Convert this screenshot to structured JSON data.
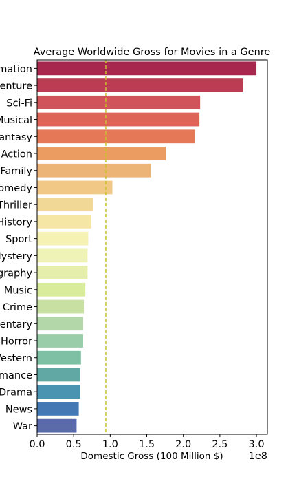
{
  "chart_data": {
    "type": "bar",
    "orientation": "horizontal",
    "title": "Average Worldwide Gross for Movies in a Genre",
    "xlabel": "Domestic Gross (100 Million $)",
    "ylabel": "",
    "x_offset_label": "1e8",
    "xlim": [
      0,
      3.15
    ],
    "xticks": [
      "0.0",
      "0.5",
      "1.0",
      "1.5",
      "2.0",
      "2.5",
      "3.0"
    ],
    "grid": false,
    "legend": "none",
    "categories": [
      "Animation",
      "Adventure",
      "Sci-Fi",
      "Musical",
      "Fantasy",
      "Action",
      "Family",
      "Comedy",
      "Thriller",
      "History",
      "Sport",
      "Mystery",
      "Biography",
      "Music",
      "Crime",
      "Documentary",
      "Horror",
      "Western",
      "Romance",
      "Drama",
      "News",
      "War"
    ],
    "values": [
      3.0,
      2.82,
      2.23,
      2.22,
      2.16,
      1.76,
      1.56,
      1.03,
      0.77,
      0.74,
      0.7,
      0.69,
      0.69,
      0.66,
      0.64,
      0.63,
      0.63,
      0.6,
      0.59,
      0.59,
      0.57,
      0.54
    ],
    "colors": [
      "#a8274f",
      "#bb3c53",
      "#d0545a",
      "#de6458",
      "#e57856",
      "#eb9c60",
      "#ecb476",
      "#f1c886",
      "#f2d897",
      "#f5e6a5",
      "#f5f2b3",
      "#f0f3b6",
      "#e5eeab",
      "#d9ec9c",
      "#c9e0a3",
      "#b3d7a9",
      "#99cca8",
      "#7ec0a4",
      "#61a8a4",
      "#4a93b1",
      "#4478b4",
      "#5b6aa8"
    ],
    "reference_line": {
      "value": 0.94,
      "style": "dashed",
      "color": "#c8c02e"
    }
  }
}
